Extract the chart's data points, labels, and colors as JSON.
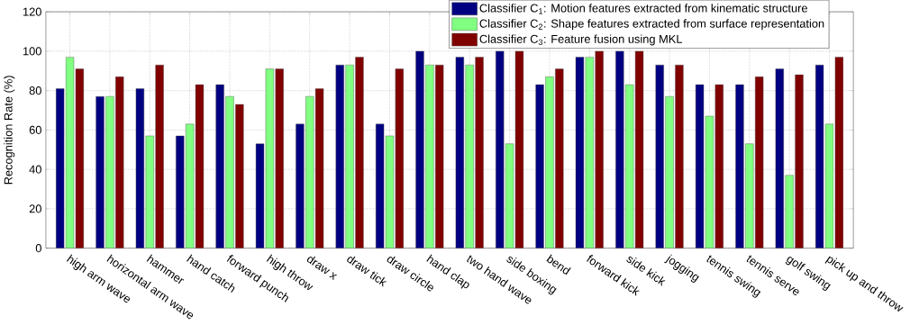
{
  "chart_data": {
    "type": "bar",
    "ylabel": "Recognition Rate (%)",
    "categories": [
      "high arm wave",
      "horizontal arm wave",
      "hammer",
      "hand catch",
      "forward punch",
      "high throw",
      "draw x",
      "draw tick",
      "draw circle",
      "hand clap",
      "two hand wave",
      "side boxing",
      "bend",
      "forward kick",
      "side kick",
      "jogging",
      "tennis swing",
      "tennis serve",
      "golf swing",
      "pick up and throw"
    ],
    "series": [
      {
        "name": "Classifier C$_{1}$: Motion features extracted from kinematic structure",
        "color": "#000080",
        "values": [
          81,
          77,
          81,
          57,
          83,
          53,
          63,
          93,
          63,
          100,
          97,
          100,
          83,
          97,
          100,
          93,
          83,
          83,
          91,
          93
        ]
      },
      {
        "name": "Classifier C$_{2}$: Shape features extracted from surface representation",
        "color": "#80ff80",
        "values": [
          97,
          77,
          57,
          63,
          77,
          91,
          77,
          93,
          57,
          93,
          93,
          53,
          87,
          97,
          83,
          77,
          67,
          53,
          37,
          63
        ]
      },
      {
        "name": "Classifier C$_{3}$: Feature fusion using MKL",
        "color": "#800000",
        "values": [
          91,
          87,
          93,
          83,
          73,
          91,
          81,
          97,
          91,
          93,
          97,
          100,
          91,
          100,
          100,
          93,
          83,
          87,
          88,
          97
        ]
      }
    ],
    "ylim": [
      0,
      120
    ],
    "yticks": [
      0,
      20,
      40,
      60,
      80,
      100,
      120
    ],
    "grid": true,
    "legend": "top right"
  }
}
